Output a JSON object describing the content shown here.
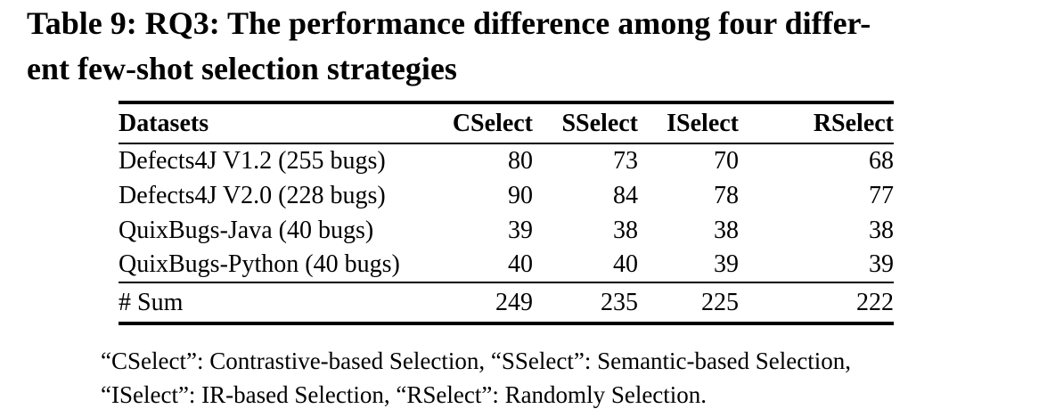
{
  "page": {
    "type": "academic-paper-table",
    "colors": {
      "background": "#ffffff",
      "text": "#000000",
      "rules": "#000000"
    }
  },
  "caption": {
    "full_text": "Table 9: RQ3: The performance difference among four different few-shot selection strategies",
    "line1": "Table 9: RQ3: The performance difference among four differ-",
    "line2": "ent few-shot selection strategies"
  },
  "table": {
    "columns": [
      "Datasets",
      "CSelect",
      "SSelect",
      "ISelect",
      "RSelect"
    ],
    "rows": [
      {
        "dataset": "Defects4J V1.2 (255 bugs)",
        "values": [
          "80",
          "73",
          "70",
          "68"
        ],
        "bold_value_indexes": [
          0
        ]
      },
      {
        "dataset": "Defects4J V2.0 (228 bugs)",
        "values": [
          "90",
          "84",
          "78",
          "77"
        ],
        "bold_value_indexes": [
          0
        ]
      },
      {
        "dataset": "QuixBugs-Java (40 bugs)",
        "values": [
          "39",
          "38",
          "38",
          "38"
        ],
        "bold_value_indexes": [
          0
        ]
      },
      {
        "dataset": "QuixBugs-Python (40 bugs)",
        "values": [
          "40",
          "40",
          "39",
          "39"
        ],
        "bold_value_indexes": [
          0,
          1
        ]
      }
    ],
    "sum_row": {
      "label": "# Sum",
      "values": [
        "249",
        "235",
        "225",
        "222"
      ],
      "bold_value_indexes": [
        0
      ]
    }
  },
  "footnote": {
    "line1": "“CSelect”: Contrastive-based Selection, “SSelect”: Semantic-based Selection,",
    "line2": "“ISelect”: IR-based Selection, “RSelect”: Randomly Selection."
  },
  "chart_data": {
    "type": "table",
    "title": "Table 9: RQ3: The performance difference among four different few-shot selection strategies",
    "categories": [
      "Defects4J V1.2 (255 bugs)",
      "Defects4J V2.0 (228 bugs)",
      "QuixBugs-Java (40 bugs)",
      "QuixBugs-Python (40 bugs)",
      "# Sum"
    ],
    "series": [
      {
        "name": "CSelect",
        "values": [
          80,
          90,
          39,
          40,
          249
        ]
      },
      {
        "name": "SSelect",
        "values": [
          73,
          84,
          38,
          40,
          235
        ]
      },
      {
        "name": "ISelect",
        "values": [
          70,
          78,
          38,
          39,
          225
        ]
      },
      {
        "name": "RSelect",
        "values": [
          68,
          77,
          38,
          39,
          222
        ]
      }
    ]
  }
}
